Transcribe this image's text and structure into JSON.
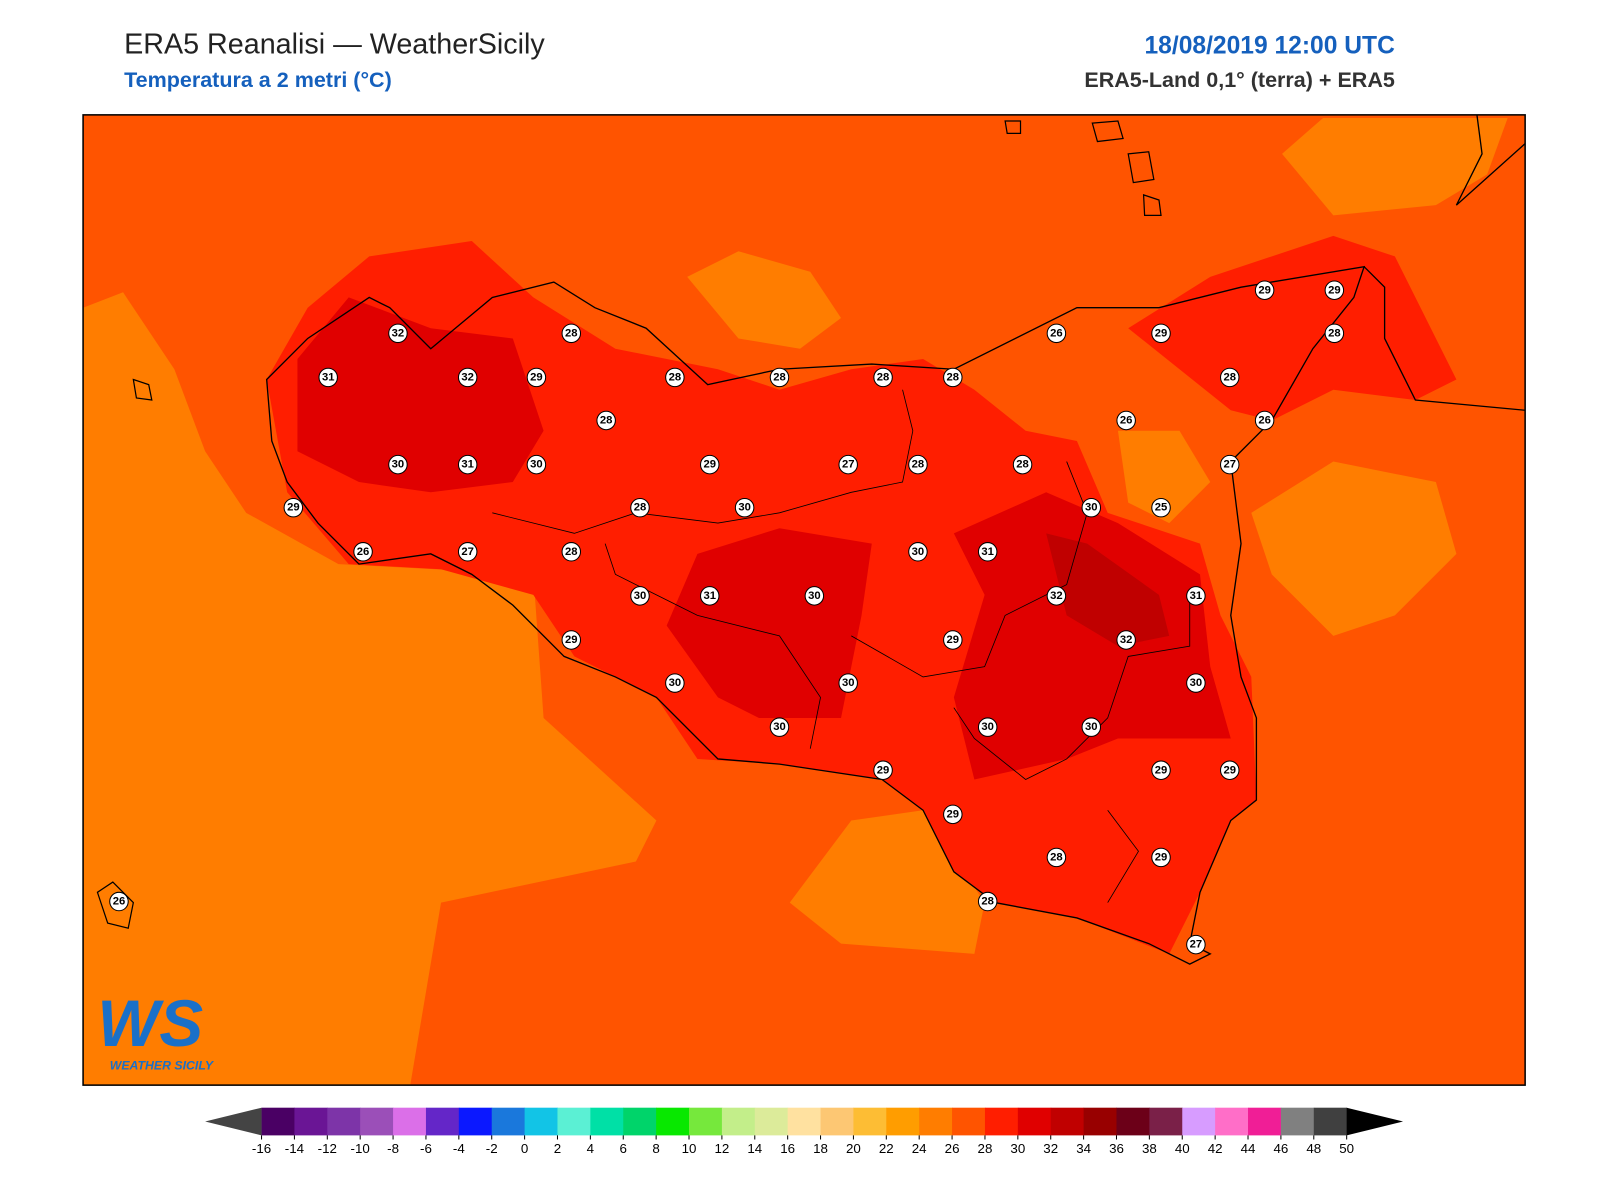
{
  "header": {
    "title": "ERA5 Reanalisi — WeatherSicily",
    "subtitle": "Temperatura a 2 metri (°C)",
    "date": "18/08/2019 12:00 UTC",
    "source": "ERA5-Land 0,1° (terra) + ERA5"
  },
  "stations": {
    "values": [
      32,
      28,
      31,
      32,
      29,
      28,
      28,
      28,
      28,
      26,
      29,
      29,
      29,
      28,
      28,
      28,
      26,
      26,
      30,
      31,
      30,
      29,
      27,
      28,
      28,
      27,
      29,
      28,
      30,
      30,
      25,
      26,
      27,
      28,
      30,
      31,
      30,
      31,
      30,
      32,
      31,
      29,
      29,
      32,
      30,
      30,
      30,
      30,
      30,
      30,
      29,
      29,
      29,
      29,
      28,
      29,
      28,
      26,
      27
    ]
  },
  "colorbar": {
    "ticks": [
      -16,
      -14,
      -12,
      -10,
      -8,
      -6,
      -4,
      -2,
      0,
      2,
      4,
      6,
      8,
      10,
      12,
      14,
      16,
      18,
      20,
      22,
      24,
      26,
      28,
      30,
      32,
      34,
      36,
      38,
      40,
      42,
      44,
      46,
      48,
      50
    ],
    "colors": [
      "#4a0064",
      "#6a1595",
      "#7d34a8",
      "#9b4fb8",
      "#db6fe8",
      "#6426c8",
      "#0b18ff",
      "#1a78dc",
      "#12c4e6",
      "#5bf0d4",
      "#00e0a6",
      "#00d46a",
      "#08e800",
      "#76e83c",
      "#c3ee8a",
      "#dceb9a",
      "#ffe1a0",
      "#fdc773",
      "#fdbd34",
      "#ff9d00",
      "#ff7d00",
      "#ff5400",
      "#ff1e00",
      "#e00000",
      "#c00000",
      "#980000",
      "#6c0018",
      "#7a2048",
      "#d79cff",
      "#ff6ec8",
      "#f01e96",
      "#808080",
      "#404040"
    ],
    "under_color": "#444444",
    "over_color": "#000000"
  },
  "logo": {
    "mark": "WS",
    "text": "WEATHER SICILY"
  }
}
